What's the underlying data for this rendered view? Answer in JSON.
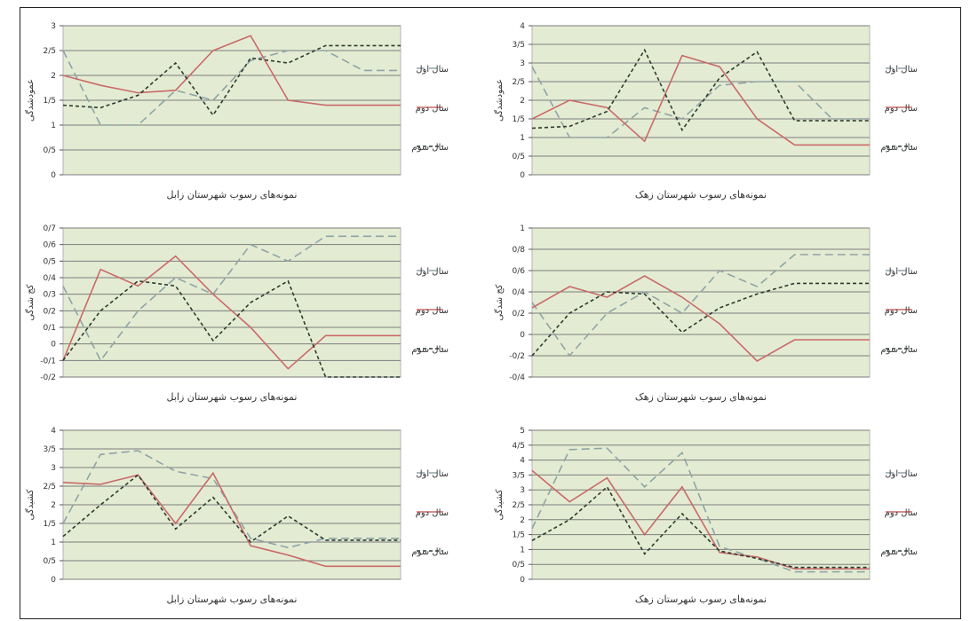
{
  "chart_data": [
    {
      "type": "line",
      "xlabel": "نمونه‌های رسوب شهرستان زابل",
      "ylabel": "عمودشدگی",
      "ylim": [
        0,
        3
      ],
      "yticks": [
        "0",
        "0/5",
        "1",
        "1/5",
        "2",
        "2/5",
        "3"
      ],
      "grid": true,
      "legend": "right",
      "x": [
        1,
        2,
        3,
        4,
        5,
        6,
        7,
        8,
        9,
        10
      ],
      "series": [
        {
          "name": "سال اول",
          "style": "dash",
          "color": "#8fa3a8",
          "values": [
            2.5,
            1.0,
            1.0,
            1.7,
            1.5,
            2.3,
            2.5,
            2.5,
            2.1,
            2.1
          ]
        },
        {
          "name": "سال دوم",
          "style": "solid",
          "color": "#c96a6a",
          "values": [
            2.0,
            1.8,
            1.65,
            1.7,
            2.5,
            2.8,
            1.5,
            1.4,
            1.4,
            1.4
          ]
        },
        {
          "name": "سال سوم",
          "style": "dot",
          "color": "#2c3a30",
          "values": [
            1.4,
            1.35,
            1.6,
            2.25,
            1.2,
            2.35,
            2.25,
            2.6,
            2.6,
            2.6
          ]
        }
      ]
    },
    {
      "type": "line",
      "xlabel": "نمونه‌های رسوب شهرستان زهک",
      "ylabel": "عمودشدگی",
      "ylim": [
        0,
        4
      ],
      "yticks": [
        "0",
        "0/5",
        "1",
        "1/5",
        "2",
        "2/5",
        "3",
        "3/5",
        "4"
      ],
      "grid": true,
      "legend": "right",
      "x": [
        1,
        2,
        3,
        4,
        5,
        6,
        7,
        8,
        9,
        10
      ],
      "series": [
        {
          "name": "سال اول",
          "style": "dash",
          "color": "#8fa3a8",
          "values": [
            2.9,
            1.0,
            1.0,
            1.8,
            1.5,
            2.4,
            2.5,
            2.5,
            1.5,
            1.5
          ]
        },
        {
          "name": "سال دوم",
          "style": "solid",
          "color": "#c96a6a",
          "values": [
            1.5,
            2.0,
            1.8,
            0.9,
            3.2,
            2.9,
            1.5,
            0.8,
            0.8,
            0.8
          ]
        },
        {
          "name": "سال سوم",
          "style": "dot",
          "color": "#2c3a30",
          "values": [
            1.25,
            1.3,
            1.7,
            3.35,
            1.2,
            2.6,
            3.3,
            1.45,
            1.45,
            1.45
          ]
        }
      ]
    },
    {
      "type": "line",
      "xlabel": "نمونه‌های رسوب شهرستان زابل",
      "ylabel": "کج شدگی",
      "ylim": [
        -0.2,
        0.7
      ],
      "yticks": [
        "-0/2",
        "-0/1",
        "0",
        "0/1",
        "0/2",
        "0/3",
        "0/4",
        "0/5",
        "0/6",
        "0/7"
      ],
      "grid": true,
      "legend": "right",
      "x": [
        1,
        2,
        3,
        4,
        5,
        6,
        7,
        8,
        9,
        10
      ],
      "series": [
        {
          "name": "سال اول",
          "style": "dash",
          "color": "#8fa3a8",
          "values": [
            0.35,
            -0.1,
            0.2,
            0.4,
            0.3,
            0.6,
            0.5,
            0.65,
            0.65,
            0.65
          ]
        },
        {
          "name": "سال دوم",
          "style": "solid",
          "color": "#c96a6a",
          "values": [
            -0.1,
            0.45,
            0.35,
            0.53,
            0.3,
            0.1,
            -0.15,
            0.05,
            0.05,
            0.05
          ]
        },
        {
          "name": "سال سوم",
          "style": "dot",
          "color": "#2c3a30",
          "values": [
            -0.1,
            0.2,
            0.38,
            0.35,
            0.02,
            0.25,
            0.38,
            -0.2,
            -0.2,
            -0.2
          ]
        }
      ]
    },
    {
      "type": "line",
      "xlabel": "نمونه‌های رسوب شهرستان زهک",
      "ylabel": "کج شدگی",
      "ylim": [
        -0.4,
        1.0
      ],
      "yticks": [
        "-0/4",
        "-0/2",
        "0",
        "0/2",
        "0/4",
        "0/6",
        "0/8",
        "1"
      ],
      "grid": true,
      "legend": "right",
      "x": [
        1,
        2,
        3,
        4,
        5,
        6,
        7,
        8,
        9,
        10
      ],
      "series": [
        {
          "name": "سال اول",
          "style": "dash",
          "color": "#8fa3a8",
          "values": [
            0.3,
            -0.2,
            0.2,
            0.4,
            0.2,
            0.6,
            0.45,
            0.75,
            0.75,
            0.75
          ]
        },
        {
          "name": "سال دوم",
          "style": "solid",
          "color": "#c96a6a",
          "values": [
            0.25,
            0.45,
            0.35,
            0.55,
            0.35,
            0.1,
            -0.25,
            -0.05,
            -0.05,
            -0.05
          ]
        },
        {
          "name": "سال سوم",
          "style": "dot",
          "color": "#2c3a30",
          "values": [
            -0.2,
            0.2,
            0.4,
            0.38,
            0.02,
            0.25,
            0.38,
            0.48,
            0.48,
            0.48
          ]
        }
      ]
    },
    {
      "type": "line",
      "xlabel": "نمونه‌های رسوب شهرستان زابل",
      "ylabel": "کشیدگی",
      "ylim": [
        0,
        4
      ],
      "yticks": [
        "0",
        "0/5",
        "1",
        "1/5",
        "2",
        "2/5",
        "3",
        "3/5",
        "4"
      ],
      "grid": true,
      "legend": "right",
      "x": [
        1,
        2,
        3,
        4,
        5,
        6,
        7,
        8,
        9,
        10
      ],
      "series": [
        {
          "name": "سال اول",
          "style": "dash",
          "color": "#8fa3a8",
          "values": [
            1.5,
            3.35,
            3.45,
            2.9,
            2.7,
            1.1,
            0.85,
            1.1,
            1.1,
            1.1
          ]
        },
        {
          "name": "سال دوم",
          "style": "solid",
          "color": "#c96a6a",
          "values": [
            2.6,
            2.55,
            2.8,
            1.5,
            2.85,
            0.9,
            0.65,
            0.35,
            0.35,
            0.35
          ]
        },
        {
          "name": "سال سوم",
          "style": "dot",
          "color": "#2c3a30",
          "values": [
            1.15,
            2.0,
            2.8,
            1.35,
            2.2,
            1.0,
            1.7,
            1.05,
            1.05,
            1.05
          ]
        }
      ]
    },
    {
      "type": "line",
      "xlabel": "نمونه‌های رسوب شهرستان زهک",
      "ylabel": "کشیدگی",
      "ylim": [
        0,
        5
      ],
      "yticks": [
        "0",
        "0/5",
        "1",
        "1/5",
        "2",
        "2/5",
        "3",
        "3/5",
        "4",
        "4/5",
        "5"
      ],
      "grid": true,
      "legend": "right",
      "x": [
        1,
        2,
        3,
        4,
        5,
        6,
        7,
        8,
        9,
        10
      ],
      "series": [
        {
          "name": "سال اول",
          "style": "dash",
          "color": "#8fa3a8",
          "values": [
            1.7,
            4.35,
            4.4,
            3.1,
            4.25,
            1.1,
            0.7,
            0.25,
            0.25,
            0.25
          ]
        },
        {
          "name": "سال دوم",
          "style": "solid",
          "color": "#c96a6a",
          "values": [
            3.65,
            2.6,
            3.4,
            1.5,
            3.1,
            0.9,
            0.75,
            0.35,
            0.35,
            0.35
          ]
        },
        {
          "name": "سال سوم",
          "style": "dot",
          "color": "#2c3a30",
          "values": [
            1.3,
            2.0,
            3.1,
            0.85,
            2.2,
            0.95,
            0.7,
            0.4,
            0.4,
            0.4
          ]
        }
      ]
    }
  ]
}
